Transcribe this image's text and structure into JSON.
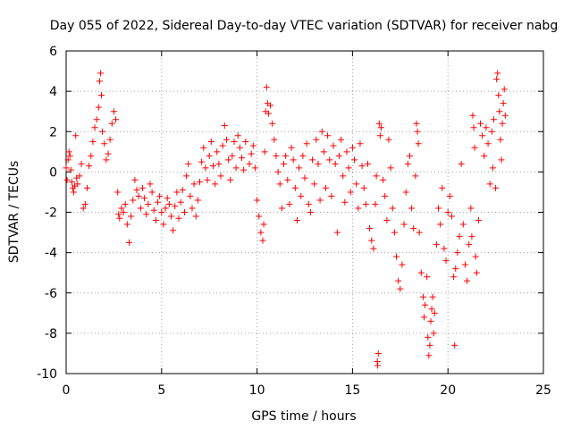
{
  "chart_data": {
    "type": "scatter",
    "title": "Day 055 of 2022, Sidereal Day-to-day VTEC variation (SDTVAR) for receiver nabg",
    "xlabel": "GPS time / hours",
    "ylabel": "SDTVAR / TECUs",
    "xlim": [
      0,
      25
    ],
    "ylim": [
      -10,
      6
    ],
    "xticks": [
      0,
      5,
      10,
      15,
      20,
      25
    ],
    "yticks": [
      -10,
      -8,
      -6,
      -4,
      -2,
      0,
      2,
      4,
      6
    ],
    "grid": true,
    "marker": "+",
    "series": [
      {
        "name": "SDTVAR",
        "color": "#ff0000",
        "points": [
          [
            0.0,
            0.2
          ],
          [
            0.05,
            -0.4
          ],
          [
            0.1,
            0.6
          ],
          [
            0.15,
            1.0
          ],
          [
            0.2,
            0.8
          ],
          [
            0.25,
            0.1
          ],
          [
            0.3,
            -0.5
          ],
          [
            0.35,
            -0.8
          ],
          [
            0.4,
            -1.0
          ],
          [
            0.45,
            -0.7
          ],
          [
            0.5,
            1.8
          ],
          [
            0.55,
            -0.3
          ],
          [
            0.6,
            -0.6
          ],
          [
            0.7,
            -0.2
          ],
          [
            0.8,
            0.4
          ],
          [
            0.9,
            -1.8
          ],
          [
            1.0,
            -1.6
          ],
          [
            1.1,
            -0.8
          ],
          [
            1.2,
            0.3
          ],
          [
            1.3,
            0.8
          ],
          [
            1.4,
            1.5
          ],
          [
            1.5,
            2.2
          ],
          [
            1.6,
            2.6
          ],
          [
            1.7,
            3.2
          ],
          [
            1.75,
            4.5
          ],
          [
            1.8,
            4.9
          ],
          [
            1.85,
            3.8
          ],
          [
            1.9,
            2.0
          ],
          [
            2.0,
            1.4
          ],
          [
            2.1,
            0.6
          ],
          [
            2.2,
            0.9
          ],
          [
            2.3,
            1.6
          ],
          [
            2.4,
            2.4
          ],
          [
            2.5,
            3.0
          ],
          [
            2.6,
            2.6
          ],
          [
            2.7,
            -1.0
          ],
          [
            2.75,
            -2.1
          ],
          [
            2.8,
            -2.3
          ],
          [
            2.9,
            -1.8
          ],
          [
            3.0,
            -2.0
          ],
          [
            3.1,
            -1.6
          ],
          [
            3.2,
            -2.6
          ],
          [
            3.3,
            -3.5
          ],
          [
            3.4,
            -2.2
          ],
          [
            3.5,
            -1.4
          ],
          [
            3.6,
            -0.4
          ],
          [
            3.7,
            -0.9
          ],
          [
            3.8,
            -1.2
          ],
          [
            3.9,
            -1.8
          ],
          [
            4.0,
            -0.8
          ],
          [
            4.1,
            -1.3
          ],
          [
            4.2,
            -2.1
          ],
          [
            4.3,
            -1.6
          ],
          [
            4.4,
            -0.6
          ],
          [
            4.5,
            -1.0
          ],
          [
            4.6,
            -1.9
          ],
          [
            4.7,
            -2.4
          ],
          [
            4.8,
            -1.5
          ],
          [
            4.9,
            -1.2
          ],
          [
            5.0,
            -2.0
          ],
          [
            5.1,
            -2.6
          ],
          [
            5.2,
            -1.8
          ],
          [
            5.3,
            -1.3
          ],
          [
            5.4,
            -1.6
          ],
          [
            5.5,
            -2.2
          ],
          [
            5.6,
            -2.9
          ],
          [
            5.7,
            -1.7
          ],
          [
            5.8,
            -1.0
          ],
          [
            5.9,
            -2.3
          ],
          [
            6.0,
            -1.5
          ],
          [
            6.1,
            -0.9
          ],
          [
            6.2,
            -2.0
          ],
          [
            6.3,
            -0.2
          ],
          [
            6.4,
            0.4
          ],
          [
            6.5,
            -1.2
          ],
          [
            6.6,
            -1.8
          ],
          [
            6.7,
            -0.6
          ],
          [
            6.8,
            -2.2
          ],
          [
            6.9,
            -1.4
          ],
          [
            7.0,
            -0.5
          ],
          [
            7.1,
            0.5
          ],
          [
            7.2,
            1.2
          ],
          [
            7.3,
            0.2
          ],
          [
            7.4,
            -0.4
          ],
          [
            7.5,
            0.8
          ],
          [
            7.6,
            1.5
          ],
          [
            7.7,
            0.3
          ],
          [
            7.8,
            -0.6
          ],
          [
            7.9,
            1.0
          ],
          [
            8.0,
            0.4
          ],
          [
            8.1,
            -0.2
          ],
          [
            8.2,
            1.3
          ],
          [
            8.3,
            2.3
          ],
          [
            8.4,
            1.6
          ],
          [
            8.5,
            0.6
          ],
          [
            8.6,
            -0.4
          ],
          [
            8.7,
            0.8
          ],
          [
            8.8,
            1.5
          ],
          [
            8.9,
            0.2
          ],
          [
            9.0,
            1.8
          ],
          [
            9.1,
            1.2
          ],
          [
            9.2,
            0.7
          ],
          [
            9.3,
            0.1
          ],
          [
            9.4,
            1.5
          ],
          [
            9.6,
            0.4
          ],
          [
            9.7,
            0.9
          ],
          [
            9.8,
            1.3
          ],
          [
            9.9,
            0.2
          ],
          [
            10.0,
            -1.4
          ],
          [
            10.1,
            -2.2
          ],
          [
            10.2,
            -3.0
          ],
          [
            10.3,
            -3.4
          ],
          [
            10.35,
            -2.6
          ],
          [
            10.4,
            1.0
          ],
          [
            10.45,
            3.0
          ],
          [
            10.5,
            4.2
          ],
          [
            10.55,
            3.4
          ],
          [
            10.6,
            2.9
          ],
          [
            10.7,
            3.3
          ],
          [
            10.8,
            2.4
          ],
          [
            10.9,
            1.6
          ],
          [
            11.0,
            0.8
          ],
          [
            11.1,
            0.0
          ],
          [
            11.2,
            -0.6
          ],
          [
            11.3,
            -1.8
          ],
          [
            11.4,
            0.4
          ],
          [
            11.5,
            0.8
          ],
          [
            11.6,
            -0.4
          ],
          [
            11.7,
            -1.6
          ],
          [
            11.8,
            1.2
          ],
          [
            11.9,
            0.6
          ],
          [
            12.0,
            -0.8
          ],
          [
            12.1,
            -2.4
          ],
          [
            12.2,
            0.2
          ],
          [
            12.3,
            -1.2
          ],
          [
            12.4,
            0.8
          ],
          [
            12.5,
            -0.3
          ],
          [
            12.6,
            1.4
          ],
          [
            12.7,
            -1.6
          ],
          [
            12.8,
            -2.0
          ],
          [
            12.9,
            0.6
          ],
          [
            13.0,
            -0.6
          ],
          [
            13.1,
            1.6
          ],
          [
            13.2,
            0.4
          ],
          [
            13.3,
            -1.4
          ],
          [
            13.4,
            2.0
          ],
          [
            13.5,
            1.0
          ],
          [
            13.6,
            -0.8
          ],
          [
            13.7,
            1.8
          ],
          [
            13.8,
            0.6
          ],
          [
            13.9,
            -1.2
          ],
          [
            14.0,
            1.3
          ],
          [
            14.1,
            0.4
          ],
          [
            14.2,
            -3.0
          ],
          [
            14.3,
            0.8
          ],
          [
            14.4,
            1.6
          ],
          [
            14.5,
            -0.2
          ],
          [
            14.6,
            -1.5
          ],
          [
            14.7,
            1.0
          ],
          [
            14.8,
            0.2
          ],
          [
            14.9,
            -1.0
          ],
          [
            15.0,
            1.2
          ],
          [
            15.1,
            0.6
          ],
          [
            15.2,
            -0.6
          ],
          [
            15.3,
            -1.8
          ],
          [
            15.4,
            1.4
          ],
          [
            15.5,
            0.3
          ],
          [
            15.6,
            -0.8
          ],
          [
            15.7,
            -1.6
          ],
          [
            15.8,
            0.4
          ],
          [
            15.9,
            -2.8
          ],
          [
            16.0,
            -3.4
          ],
          [
            16.1,
            -3.8
          ],
          [
            16.2,
            -1.6
          ],
          [
            16.25,
            -0.2
          ],
          [
            16.3,
            -9.4
          ],
          [
            16.32,
            -9.6
          ],
          [
            16.35,
            -9.0
          ],
          [
            16.4,
            2.4
          ],
          [
            16.45,
            1.8
          ],
          [
            16.5,
            2.2
          ],
          [
            16.6,
            -0.4
          ],
          [
            16.7,
            -1.2
          ],
          [
            16.8,
            -2.4
          ],
          [
            16.9,
            1.6
          ],
          [
            17.0,
            0.2
          ],
          [
            17.1,
            -1.8
          ],
          [
            17.2,
            -3.0
          ],
          [
            17.3,
            -4.2
          ],
          [
            17.4,
            -5.4
          ],
          [
            17.5,
            -5.8
          ],
          [
            17.6,
            -4.6
          ],
          [
            17.7,
            -2.6
          ],
          [
            17.8,
            -1.0
          ],
          [
            17.9,
            0.4
          ],
          [
            18.0,
            0.8
          ],
          [
            18.1,
            -1.8
          ],
          [
            18.2,
            -2.8
          ],
          [
            18.3,
            -0.2
          ],
          [
            18.35,
            2.4
          ],
          [
            18.4,
            2.0
          ],
          [
            18.45,
            1.4
          ],
          [
            18.5,
            -3.0
          ],
          [
            18.6,
            -5.0
          ],
          [
            18.7,
            -6.2
          ],
          [
            18.75,
            -7.2
          ],
          [
            18.8,
            -6.6
          ],
          [
            18.9,
            -5.2
          ],
          [
            18.95,
            -8.2
          ],
          [
            19.0,
            -9.1
          ],
          [
            19.05,
            -8.6
          ],
          [
            19.1,
            -7.4
          ],
          [
            19.15,
            -6.8
          ],
          [
            19.2,
            -6.2
          ],
          [
            19.25,
            -8.0
          ],
          [
            19.3,
            -7.0
          ],
          [
            19.4,
            -3.6
          ],
          [
            19.5,
            -1.8
          ],
          [
            19.6,
            -2.6
          ],
          [
            19.7,
            -0.8
          ],
          [
            19.8,
            -3.8
          ],
          [
            19.9,
            -4.4
          ],
          [
            20.0,
            -2.0
          ],
          [
            20.1,
            -1.2
          ],
          [
            20.2,
            -2.2
          ],
          [
            20.3,
            -5.2
          ],
          [
            20.35,
            -8.6
          ],
          [
            20.4,
            -4.8
          ],
          [
            20.5,
            -4.0
          ],
          [
            20.6,
            -3.2
          ],
          [
            20.7,
            0.4
          ],
          [
            20.8,
            -2.6
          ],
          [
            20.9,
            -4.6
          ],
          [
            21.0,
            -5.4
          ],
          [
            21.1,
            -3.6
          ],
          [
            21.2,
            -1.8
          ],
          [
            21.25,
            -3.2
          ],
          [
            21.3,
            2.8
          ],
          [
            21.35,
            2.2
          ],
          [
            21.4,
            1.2
          ],
          [
            21.45,
            -4.2
          ],
          [
            21.5,
            -5.0
          ],
          [
            21.6,
            -2.4
          ],
          [
            21.7,
            2.4
          ],
          [
            21.8,
            1.8
          ],
          [
            21.9,
            0.8
          ],
          [
            22.0,
            2.2
          ],
          [
            22.1,
            1.4
          ],
          [
            22.2,
            -0.6
          ],
          [
            22.3,
            2.0
          ],
          [
            22.35,
            0.2
          ],
          [
            22.4,
            2.6
          ],
          [
            22.5,
            -0.8
          ],
          [
            22.55,
            4.6
          ],
          [
            22.6,
            4.9
          ],
          [
            22.65,
            3.8
          ],
          [
            22.7,
            3.0
          ],
          [
            22.75,
            1.6
          ],
          [
            22.8,
            0.6
          ],
          [
            22.85,
            2.4
          ],
          [
            22.9,
            3.4
          ],
          [
            22.95,
            4.1
          ],
          [
            23.0,
            2.8
          ]
        ]
      }
    ]
  }
}
